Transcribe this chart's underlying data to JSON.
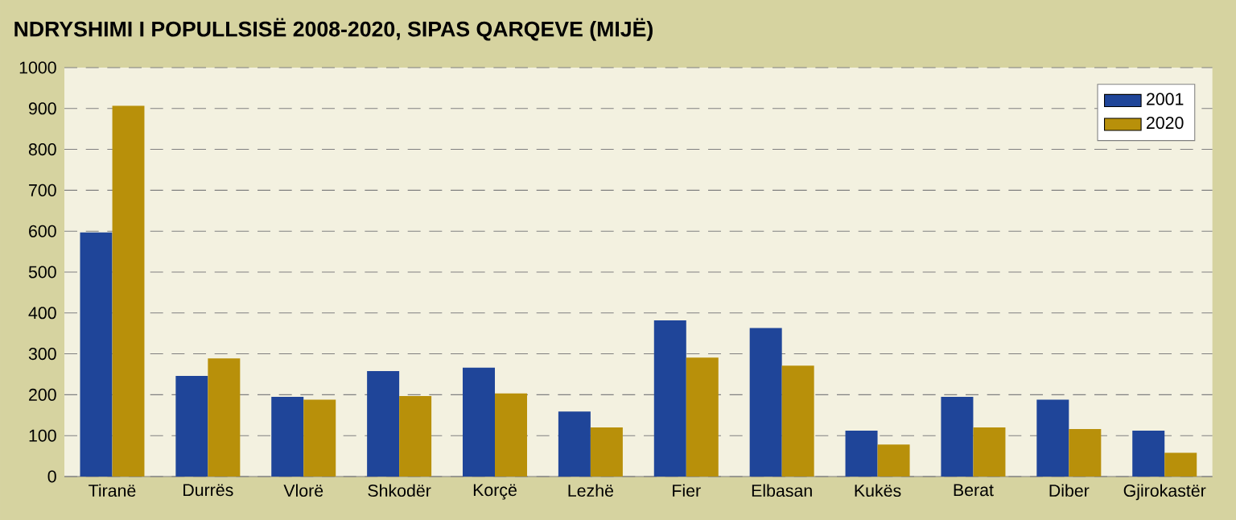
{
  "chart_data": {
    "type": "bar",
    "title": "NDRYSHIMI I POPULLSISË 2008-2020, SIPAS QARQEVE (MIJË)",
    "categories": [
      "Tiranë",
      "Durrës",
      "Vlorë",
      "Shkodër",
      "Korçë",
      "Lezhë",
      "Fier",
      "Elbasan",
      "Kukës",
      "Berat",
      "Diber",
      "Gjirokastër"
    ],
    "series": [
      {
        "name": "2001",
        "color": "#1f4599",
        "values": [
          597,
          246,
          195,
          258,
          266,
          159,
          382,
          363,
          112,
          195,
          188,
          112
        ]
      },
      {
        "name": "2020",
        "color": "#b8900a",
        "values": [
          907,
          289,
          188,
          197,
          203,
          120,
          291,
          271,
          78,
          120,
          116,
          58
        ]
      }
    ],
    "ylim": [
      0,
      1000
    ],
    "yticks": [
      0,
      100,
      200,
      300,
      400,
      500,
      600,
      700,
      800,
      900,
      1000
    ],
    "grid": "y",
    "legend": "top right"
  }
}
